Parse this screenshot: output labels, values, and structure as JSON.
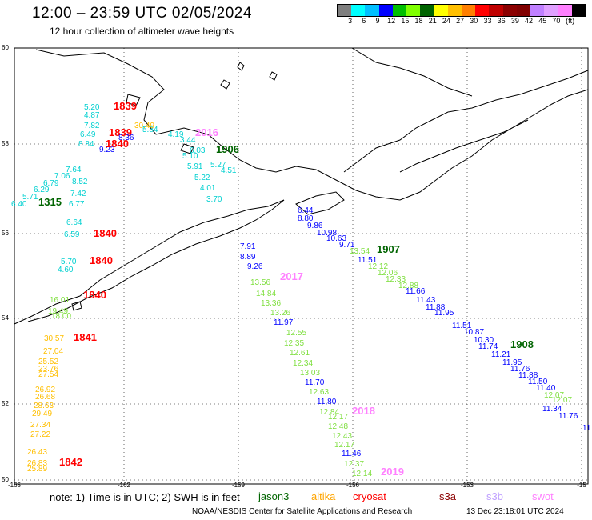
{
  "header": {
    "title": "12:00 – 23:59 UTC 02/05/2024",
    "subtitle": "12 hour collection of altimeter wave heights"
  },
  "legend": {
    "colors": [
      "#7f7f7f",
      "#00ffff",
      "#00bfff",
      "#0000ff",
      "#00bf00",
      "#7fff00",
      "#006400",
      "#ffff00",
      "#ffbf00",
      "#ff7f00",
      "#ff0000",
      "#bf0000",
      "#8b0000",
      "#800000",
      "#c080ff",
      "#e0a0ff",
      "#ff80ff",
      "#000000"
    ],
    "labels": [
      "3",
      "6",
      "9",
      "12",
      "15",
      "18",
      "21",
      "24",
      "27",
      "30",
      "33",
      "36",
      "39",
      "42",
      "45",
      "70",
      "(ft)"
    ]
  },
  "axes": {
    "x_ticks": [
      "-165",
      "-162",
      "-159",
      "-156",
      "-153",
      "-15"
    ],
    "y_ticks": [
      "60",
      "58",
      "56",
      "54",
      "52",
      "50"
    ]
  },
  "tracks": [
    {
      "time": "1839",
      "time_color": "#ff0000",
      "color": "#00d0d0",
      "points": [
        "5.20",
        "4.87",
        "7.82",
        "6.49",
        "8.84"
      ]
    },
    {
      "time": "1839",
      "time_color": "#ff0000",
      "color": "#ff0000",
      "points": []
    },
    {
      "time": "1840",
      "time_color": "#ff0000",
      "color": "#0000ff",
      "points": [
        "9.23",
        "8.36"
      ]
    },
    {
      "time": "2016",
      "time_color": "#ff80ff",
      "color": "#00d0d0",
      "points": [
        "4.19",
        "3.44",
        "5.84",
        "6.03",
        "5.10",
        "5.27",
        "5.91",
        "4.51",
        "5.22",
        "4.01",
        "3.70"
      ]
    },
    {
      "time": "1906",
      "time_color": "#006400",
      "color": "#00d0d0",
      "points": []
    },
    {
      "time": "1315",
      "time_color": "#006400",
      "color": "#00d0d0",
      "points": [
        "7.64",
        "7.06",
        "6.79",
        "6.29",
        "5.71",
        "6.40",
        "8.52",
        "7.42",
        "6.77"
      ]
    },
    {
      "time": "1840",
      "time_color": "#ff0000",
      "color": "#00d0d0",
      "points": [
        "6.64",
        "6.59"
      ]
    },
    {
      "time": "1907",
      "time_color": "#006400",
      "color": "#0000ff",
      "points": [
        "6.44",
        "8.80",
        "9.86",
        "10.98",
        "10.63",
        "9.71",
        "11.51"
      ]
    },
    {
      "time": "1908",
      "time_color": "#006400",
      "color": "#0000ff",
      "points": [
        "11.66",
        "11.43",
        "11.88",
        "11.95",
        "11.51",
        "10.87",
        "10.30",
        "11.74",
        "11.21",
        "11.95",
        "11.76",
        "11.88",
        "11.50",
        "11.40",
        "11.34",
        "11.76",
        "11"
      ]
    },
    {
      "time": "2017",
      "time_color": "#ff80ff",
      "color": "#7fdf3f",
      "points": [
        "13.54",
        "12.12",
        "12.06",
        "12.33",
        "12.88",
        "13.56",
        "14.84",
        "13.36",
        "13.26",
        "12.55",
        "12.35",
        "12.61",
        "12.34",
        "13.03",
        "12.63",
        "12.84",
        "12.17",
        "12.48",
        "12.43",
        "12.17",
        "12.37",
        "12.14"
      ]
    },
    {
      "time": "2018",
      "time_color": "#ff80ff",
      "color": "#0000ff",
      "points": [
        "7.91",
        "8.89",
        "9.26",
        "11.97",
        "11.70",
        "11.80",
        "11.46"
      ]
    },
    {
      "time": "2019",
      "time_color": "#ff80ff",
      "color": "#7fdf3f",
      "points": [
        "12.07",
        "12.07"
      ]
    },
    {
      "time": "1840",
      "time_color": "#ff0000",
      "color": "#00d0d0",
      "points": [
        "5.70",
        "4.60"
      ]
    },
    {
      "time": "1840",
      "time_color": "#ff0000",
      "color": "#7fdf3f",
      "points": [
        "16.01",
        "19.49",
        "18.00"
      ]
    },
    {
      "time": "1841",
      "time_color": "#ff0000",
      "color": "#ffbf00",
      "points": [
        "30.57",
        "27.04",
        "25.52",
        "23.76",
        "27.54",
        "26.92",
        "26.68",
        "28.63",
        "29.49",
        "27.34",
        "27.22",
        "26.43",
        "26.83",
        "25.89"
      ]
    },
    {
      "time": "1842",
      "time_color": "#ff0000",
      "color": "#ffbf00",
      "points": [
        "30.49"
      ]
    }
  ],
  "note": {
    "text": "note:  1) Time is in UTC;  2) SWH is in feet"
  },
  "satellites": [
    {
      "name": "jason3",
      "color": "#006400"
    },
    {
      "name": "altika",
      "color": "#ffa500"
    },
    {
      "name": "cryosat",
      "color": "#ff0000"
    },
    {
      "name": "s3a",
      "color": "#8b0000"
    },
    {
      "name": "s3b",
      "color": "#c0a0ff"
    },
    {
      "name": "swot",
      "color": "#ff80ff"
    }
  ],
  "credit": "NOAA/NESDIS Center for Satellite Applications and Research",
  "timestamp": "13 Dec 23:18:01 UTC 2024"
}
